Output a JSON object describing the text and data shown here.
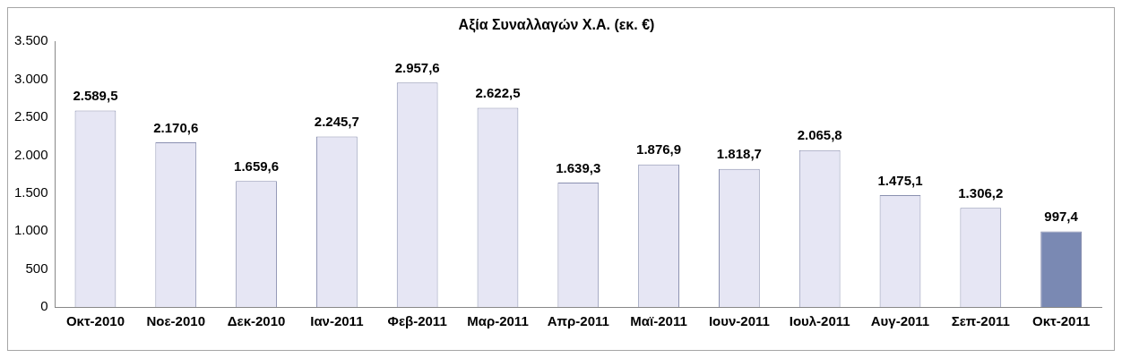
{
  "chart_data": {
    "type": "bar",
    "title": "Αξία Συναλλαγών Χ.Α. (εκ. €)",
    "categories": [
      "Οκτ-2010",
      "Νοε-2010",
      "Δεκ-2010",
      "Ιαν-2011",
      "Φεβ-2011",
      "Μαρ-2011",
      "Απρ-2011",
      "Μαϊ-2011",
      "Ιουν-2011",
      "Ιουλ-2011",
      "Αυγ-2011",
      "Σεπ-2011",
      "Οκτ-2011"
    ],
    "values": [
      2589.5,
      2170.6,
      1659.6,
      2245.7,
      2957.6,
      2622.5,
      1639.3,
      1876.9,
      1818.7,
      2065.8,
      1475.1,
      1306.2,
      997.4
    ],
    "value_labels": [
      "2.589,5",
      "2.170,6",
      "1.659,6",
      "2.245,7",
      "2.957,6",
      "2.622,5",
      "1.639,3",
      "1.876,9",
      "1.818,7",
      "2.065,8",
      "1.475,1",
      "1.306,2",
      "997,4"
    ],
    "colors": [
      "#e6e6f4",
      "#e6e6f4",
      "#e6e6f4",
      "#e6e6f4",
      "#e6e6f4",
      "#e6e6f4",
      "#e6e6f4",
      "#e6e6f4",
      "#e6e6f4",
      "#e6e6f4",
      "#e6e6f4",
      "#e6e6f4",
      "#7a89b3"
    ],
    "ylim": [
      0,
      3500
    ],
    "yticks": [
      0,
      500,
      {
        "value": 1000,
        "label": "1.000"
      },
      {
        "value": 1500,
        "label": "1.500"
      },
      {
        "value": 2000,
        "label": "2.000"
      },
      {
        "value": 2500,
        "label": "2.500"
      },
      {
        "value": 3000,
        "label": "3.000"
      },
      {
        "value": 3500,
        "label": "3.500"
      }
    ],
    "grid": false,
    "legend": false
  }
}
